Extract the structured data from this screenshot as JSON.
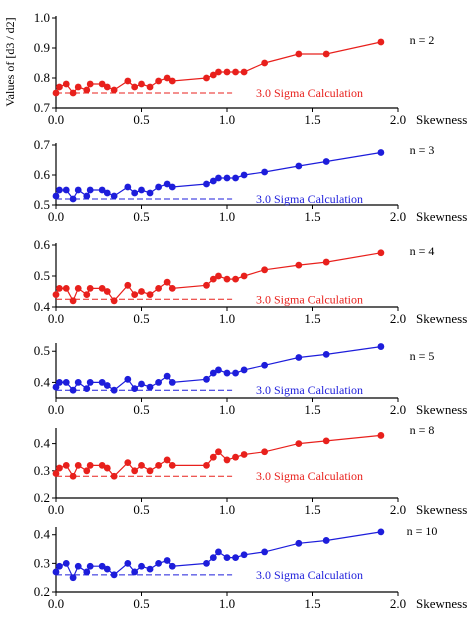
{
  "figure": {
    "ylabel": "Values of [d3 / d2]"
  },
  "chart_data": [
    {
      "type": "line",
      "n_label": "n = 2",
      "color": "#e8201c",
      "xlabel": "Skewness",
      "xlim": [
        0,
        2
      ],
      "x_ticks": [
        "0.0",
        "0.5",
        "1.0",
        "1.5",
        "2.0"
      ],
      "ylim": [
        0.7,
        1.0
      ],
      "y_ticks": [
        "0.7",
        "0.8",
        "0.9",
        "1.0"
      ],
      "reference_label": "3.0 Sigma Calculation",
      "reference_value": 0.75,
      "reference_range": [
        0,
        1.1
      ],
      "series": [
        {
          "x": [
            0.0,
            0.02,
            0.06,
            0.1,
            0.13,
            0.18,
            0.2,
            0.27,
            0.3,
            0.34,
            0.42,
            0.46,
            0.5,
            0.55,
            0.6,
            0.65,
            0.68,
            0.88,
            0.92,
            0.95,
            1.0,
            1.05,
            1.1,
            1.22,
            1.42,
            1.58,
            1.9
          ],
          "y": [
            0.75,
            0.77,
            0.78,
            0.75,
            0.77,
            0.76,
            0.78,
            0.78,
            0.77,
            0.76,
            0.79,
            0.77,
            0.78,
            0.77,
            0.79,
            0.8,
            0.79,
            0.8,
            0.81,
            0.82,
            0.82,
            0.82,
            0.82,
            0.85,
            0.88,
            0.88,
            0.92
          ]
        }
      ]
    },
    {
      "type": "line",
      "n_label": "n = 3",
      "color": "#1d1ddb",
      "xlabel": "Skewness",
      "xlim": [
        0,
        2
      ],
      "x_ticks": [
        "0.0",
        "0.5",
        "1.0",
        "1.5",
        "2.0"
      ],
      "ylim": [
        0.5,
        0.7
      ],
      "y_ticks": [
        "0.5",
        "0.6",
        "0.7"
      ],
      "reference_label": "3.0 Sigma Calculation",
      "reference_value": 0.52,
      "reference_range": [
        0,
        1.1
      ],
      "series": [
        {
          "x": [
            0.0,
            0.02,
            0.06,
            0.1,
            0.13,
            0.18,
            0.2,
            0.27,
            0.3,
            0.34,
            0.42,
            0.46,
            0.5,
            0.55,
            0.6,
            0.65,
            0.68,
            0.88,
            0.92,
            0.95,
            1.0,
            1.05,
            1.1,
            1.22,
            1.42,
            1.58,
            1.9
          ],
          "y": [
            0.53,
            0.55,
            0.55,
            0.52,
            0.55,
            0.53,
            0.55,
            0.55,
            0.54,
            0.53,
            0.56,
            0.54,
            0.55,
            0.54,
            0.56,
            0.57,
            0.56,
            0.57,
            0.58,
            0.59,
            0.59,
            0.59,
            0.6,
            0.61,
            0.63,
            0.645,
            0.675
          ]
        }
      ]
    },
    {
      "type": "line",
      "n_label": "n = 4",
      "color": "#e8201c",
      "xlabel": "Skewness",
      "xlim": [
        0,
        2
      ],
      "x_ticks": [
        "0.0",
        "0.5",
        "1.0",
        "1.5",
        "2.0"
      ],
      "ylim": [
        0.4,
        0.6
      ],
      "y_ticks": [
        "0.4",
        "0.5",
        "0.6"
      ],
      "reference_label": "3.0 Sigma Calculation",
      "reference_value": 0.425,
      "reference_range": [
        0,
        1.1
      ],
      "series": [
        {
          "x": [
            0.0,
            0.02,
            0.06,
            0.1,
            0.13,
            0.18,
            0.2,
            0.27,
            0.3,
            0.34,
            0.42,
            0.46,
            0.5,
            0.55,
            0.6,
            0.65,
            0.68,
            0.88,
            0.92,
            0.95,
            1.0,
            1.05,
            1.1,
            1.22,
            1.42,
            1.58,
            1.9
          ],
          "y": [
            0.44,
            0.46,
            0.46,
            0.42,
            0.46,
            0.44,
            0.46,
            0.46,
            0.45,
            0.42,
            0.47,
            0.44,
            0.45,
            0.44,
            0.46,
            0.48,
            0.46,
            0.47,
            0.49,
            0.5,
            0.49,
            0.49,
            0.5,
            0.52,
            0.535,
            0.545,
            0.575
          ]
        }
      ]
    },
    {
      "type": "line",
      "n_label": "n = 5",
      "color": "#1d1ddb",
      "xlabel": "Skewness",
      "xlim": [
        0,
        2
      ],
      "x_ticks": [
        "0.0",
        "0.5",
        "1.0",
        "1.5",
        "2.0"
      ],
      "ylim": [
        0.35,
        0.52
      ],
      "y_ticks": [
        "0.4",
        "0.5"
      ],
      "reference_label": "3.0 Sigma Calculation",
      "reference_value": 0.375,
      "reference_range": [
        0,
        1.1
      ],
      "series": [
        {
          "x": [
            0.0,
            0.02,
            0.06,
            0.1,
            0.13,
            0.18,
            0.2,
            0.27,
            0.3,
            0.34,
            0.42,
            0.46,
            0.5,
            0.55,
            0.6,
            0.65,
            0.68,
            0.88,
            0.92,
            0.95,
            1.0,
            1.05,
            1.1,
            1.22,
            1.42,
            1.58,
            1.9
          ],
          "y": [
            0.385,
            0.4,
            0.4,
            0.375,
            0.4,
            0.38,
            0.4,
            0.4,
            0.39,
            0.375,
            0.41,
            0.38,
            0.395,
            0.385,
            0.4,
            0.42,
            0.4,
            0.41,
            0.43,
            0.44,
            0.43,
            0.43,
            0.44,
            0.455,
            0.48,
            0.49,
            0.515
          ]
        }
      ]
    },
    {
      "type": "line",
      "n_label": "n = 8",
      "color": "#e8201c",
      "xlabel": "Skewness",
      "xlim": [
        0,
        2
      ],
      "x_ticks": [
        "0.0",
        "0.5",
        "1.0",
        "1.5",
        "2.0"
      ],
      "ylim": [
        0.2,
        0.45
      ],
      "y_ticks": [
        "0.2",
        "0.3",
        "0.4"
      ],
      "reference_label": "3.0 Sigma Calculation",
      "reference_value": 0.28,
      "reference_range": [
        0,
        1.1
      ],
      "series": [
        {
          "x": [
            0.0,
            0.02,
            0.06,
            0.1,
            0.13,
            0.18,
            0.2,
            0.27,
            0.3,
            0.34,
            0.42,
            0.46,
            0.5,
            0.55,
            0.6,
            0.65,
            0.68,
            0.88,
            0.92,
            0.95,
            1.0,
            1.05,
            1.1,
            1.22,
            1.42,
            1.58,
            1.9
          ],
          "y": [
            0.29,
            0.31,
            0.32,
            0.28,
            0.32,
            0.3,
            0.32,
            0.32,
            0.31,
            0.28,
            0.33,
            0.3,
            0.32,
            0.3,
            0.32,
            0.34,
            0.32,
            0.32,
            0.35,
            0.37,
            0.34,
            0.35,
            0.36,
            0.37,
            0.4,
            0.41,
            0.43
          ]
        }
      ]
    },
    {
      "type": "line",
      "n_label": "n = 10",
      "color": "#1d1ddb",
      "xlabel": "Skewness",
      "xlim": [
        0,
        2
      ],
      "x_ticks": [
        "0.0",
        "0.5",
        "1.0",
        "1.5",
        "2.0"
      ],
      "ylim": [
        0.2,
        0.42
      ],
      "y_ticks": [
        "0.2",
        "0.3",
        "0.4"
      ],
      "reference_label": "3.0 Sigma Calculation",
      "reference_value": 0.26,
      "reference_range": [
        0,
        1.1
      ],
      "series": [
        {
          "x": [
            0.0,
            0.02,
            0.06,
            0.1,
            0.13,
            0.18,
            0.2,
            0.27,
            0.3,
            0.34,
            0.42,
            0.46,
            0.5,
            0.55,
            0.6,
            0.65,
            0.68,
            0.88,
            0.92,
            0.95,
            1.0,
            1.05,
            1.1,
            1.22,
            1.42,
            1.58,
            1.9
          ],
          "y": [
            0.27,
            0.29,
            0.3,
            0.25,
            0.29,
            0.27,
            0.29,
            0.29,
            0.28,
            0.26,
            0.3,
            0.27,
            0.29,
            0.28,
            0.3,
            0.31,
            0.29,
            0.3,
            0.32,
            0.34,
            0.32,
            0.32,
            0.33,
            0.34,
            0.37,
            0.38,
            0.41
          ]
        }
      ]
    }
  ]
}
